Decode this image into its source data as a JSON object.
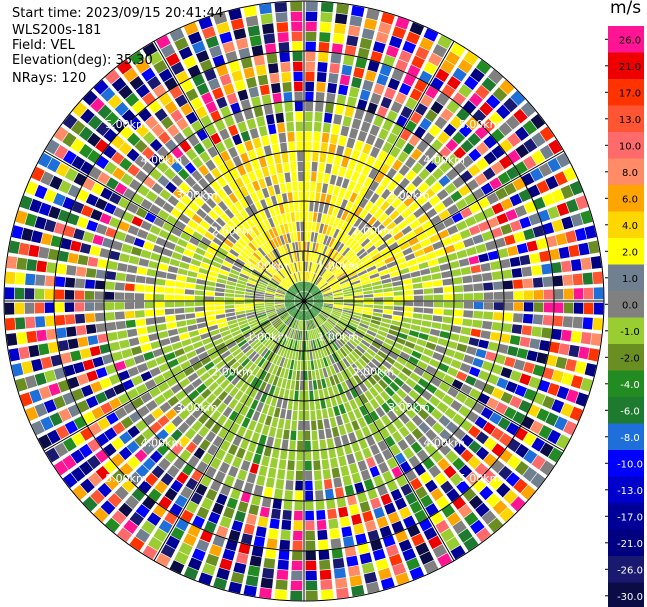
{
  "header": {
    "start_time": "Start time: 2023/09/15 20:41:44",
    "station": "WLS200s-181",
    "field": "Field: VEL",
    "elevation": "Elevation(deg): 35.30",
    "nrays": "NRays: 120"
  },
  "chart_data": {
    "type": "ppi-polar",
    "field": "VEL",
    "nrays": 120,
    "elevation_deg": 35.3,
    "range_rings_km": [
      {
        "value": 1.0,
        "label": "1.00km"
      },
      {
        "value": 2.0,
        "label": "2.00km"
      },
      {
        "value": 3.0,
        "label": "3.00km"
      },
      {
        "value": 4.0,
        "label": "4.00km"
      },
      {
        "value": 5.0,
        "label": "5.00km"
      }
    ],
    "range_rings_label_km": [
      1,
      2,
      3,
      4,
      5
    ],
    "max_range_km": 6.0,
    "spokes_deg": [
      0,
      30,
      60,
      90,
      120,
      150,
      180,
      210,
      240,
      270,
      300,
      330
    ],
    "colorbar": {
      "unit": "m/s",
      "bins": [
        {
          "label": "26.0",
          "color": "#ff1493"
        },
        {
          "label": "21.0",
          "color": "#ee0000"
        },
        {
          "label": "17.0",
          "color": "#ff3300"
        },
        {
          "label": "13.0",
          "color": "#ff5533"
        },
        {
          "label": "10.0",
          "color": "#ff6b6b"
        },
        {
          "label": "8.0",
          "color": "#ff8c66"
        },
        {
          "label": "6.0",
          "color": "#ffa500"
        },
        {
          "label": "4.0",
          "color": "#ffd700"
        },
        {
          "label": "2.0",
          "color": "#ffff00"
        },
        {
          "label": "1.0",
          "color": "#708090"
        },
        {
          "label": "0.0",
          "color": "#808080"
        },
        {
          "label": "-1.0",
          "color": "#9acd32"
        },
        {
          "label": "-2.0",
          "color": "#6b8e23"
        },
        {
          "label": "-4.0",
          "color": "#228b22"
        },
        {
          "label": "-6.0",
          "color": "#1e7a2e"
        },
        {
          "label": "-8.0",
          "color": "#1e6fd9"
        },
        {
          "label": "-10.0",
          "color": "#0000ff"
        },
        {
          "label": "-13.0",
          "color": "#0000cc"
        },
        {
          "label": "-17.0",
          "color": "#000099"
        },
        {
          "label": "-21.0",
          "color": "#000080"
        },
        {
          "label": "-26.0",
          "color": "#191970"
        },
        {
          "label": "-30.0",
          "color": "#0b0b45"
        }
      ]
    }
  }
}
